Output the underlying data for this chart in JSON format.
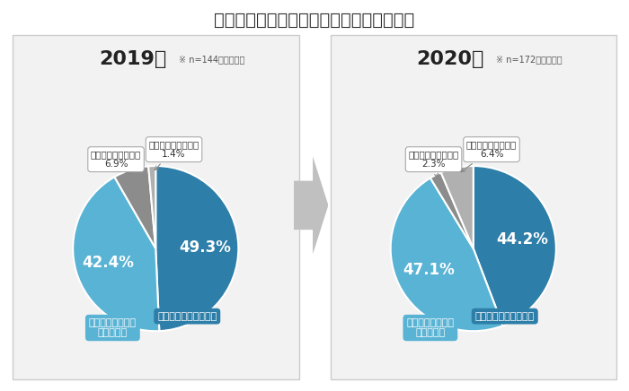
{
  "title": "》図「広告出稿に関する課題への対応方針",
  "title_text": "【図】広告出稿に関する課題への対応方針",
  "title_fontsize": 14,
  "charts": [
    {
      "year": "2019年",
      "note": "※ n=144／単一回答",
      "slices": [
        49.3,
        42.4,
        6.9,
        1.4
      ],
      "colors": [
        "#2d7ea8",
        "#59b3d4",
        "#8c8c8c",
        "#b0b0b0"
      ],
      "pct_inside": [
        "49.3%",
        "42.4%",
        "",
        ""
      ],
      "callout0_text": "特に対策はとらない\n6.9%",
      "callout1_text": "方針を決めていない\n1.4%",
      "box0_text": "個人データ取得を継続",
      "box1_text": "データ全体の傾向\n把握に移行"
    },
    {
      "year": "2020年",
      "note": "※ n=172／単一回答",
      "slices": [
        44.2,
        47.1,
        2.3,
        6.4
      ],
      "colors": [
        "#2d7ea8",
        "#59b3d4",
        "#8c8c8c",
        "#b0b0b0"
      ],
      "pct_inside": [
        "44.2%",
        "47.1%",
        "",
        ""
      ],
      "callout0_text": "特に対策はとらない\n2.3%",
      "callout1_text": "方針を決めていない\n6.4%",
      "box0_text": "個人データ取得を継続",
      "box1_text": "データ全体の傾向\n把握に移行"
    }
  ],
  "panel_bg": "#f2f2f2",
  "border_color": "#cccccc",
  "bg_color": "#ffffff",
  "arrow_color": "#c0c0c0"
}
